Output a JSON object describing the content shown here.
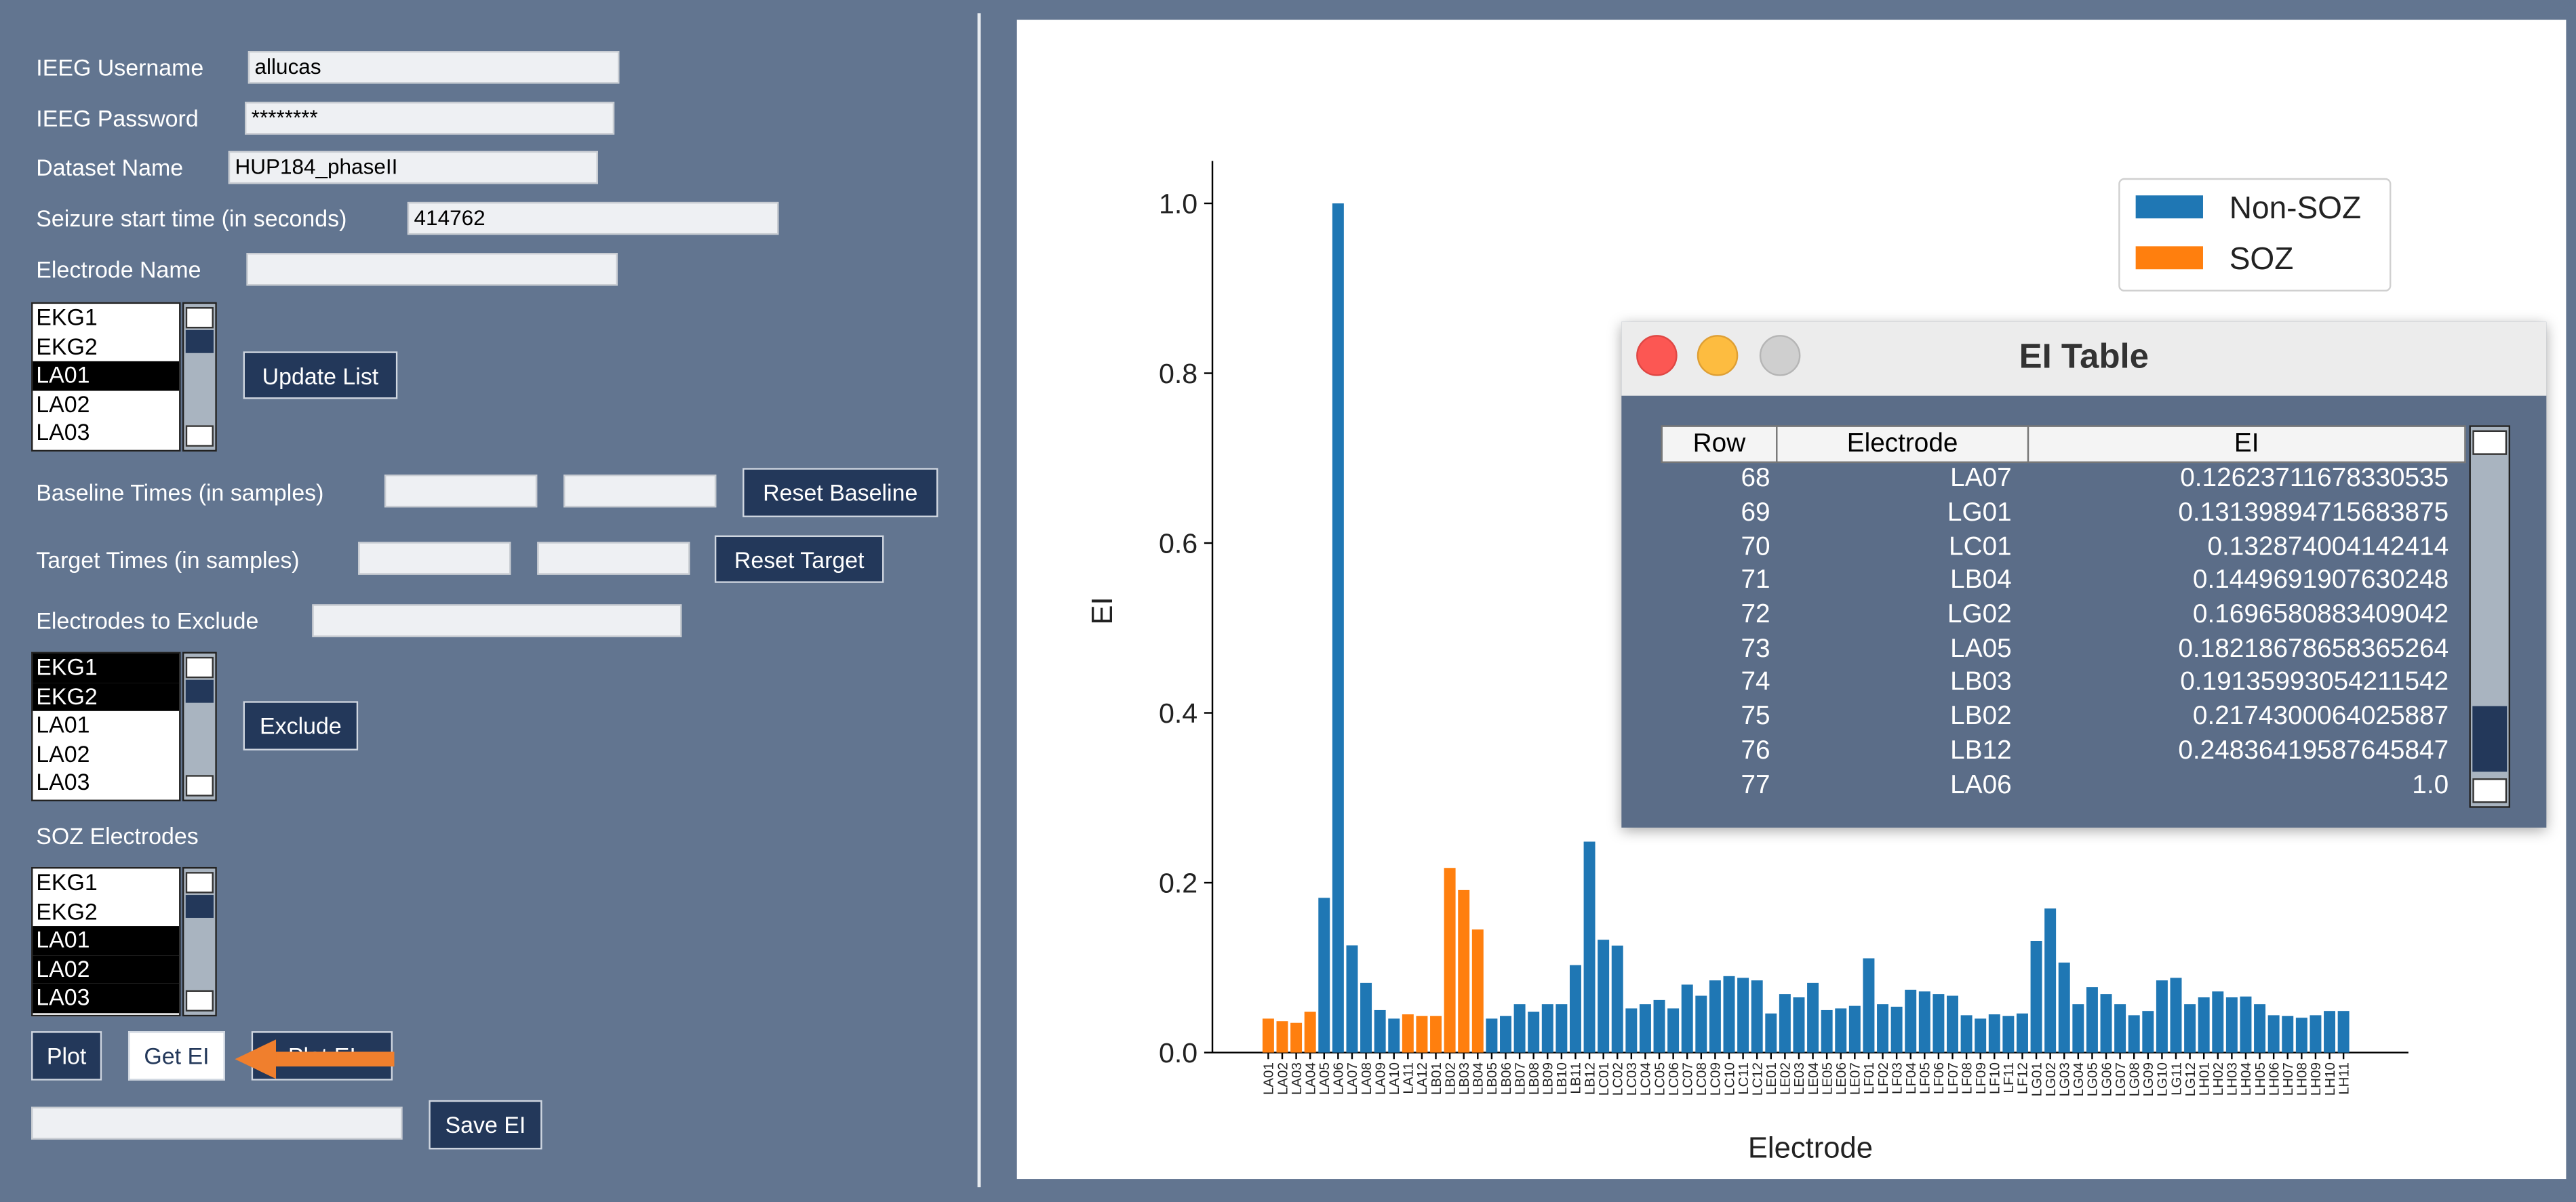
{
  "login": [
    {
      "label": "IEEG Username",
      "value": "allucas"
    },
    {
      "label": "IEEG Password",
      "value": "********"
    },
    {
      "label": "Dataset Name",
      "value": "HUP184_phaseII"
    },
    {
      "label": "Seizure start time (in seconds)",
      "value": "414762"
    },
    {
      "label": "Electrode Name"
    }
  ],
  "electrode_list": {
    "items": [
      "EKG1",
      "EKG2",
      "LA01",
      "LA02",
      "LA03"
    ],
    "selected": [
      2
    ],
    "button": "Update List"
  },
  "baseline": {
    "label": "Baseline Times (in samples)",
    "button": "Reset Baseline"
  },
  "target": {
    "label": "Target Times (in samples)",
    "button": "Reset Target"
  },
  "exclude": {
    "label": "Electrodes to Exclude",
    "items": [
      "EKG1",
      "EKG2",
      "LA01",
      "LA02",
      "LA03"
    ],
    "selected": [
      0,
      1
    ],
    "button": "Exclude"
  },
  "soz": {
    "label": "SOZ Electrodes",
    "items": [
      "EKG1",
      "EKG2",
      "LA01",
      "LA02",
      "LA03"
    ],
    "selected": [
      2,
      3,
      4
    ]
  },
  "actions": [
    "Plot",
    "Get EI",
    "Plot EI"
  ],
  "save_button": "Save EI",
  "ei_window": {
    "title": "EI Table",
    "columns": [
      "Row",
      "Electrode",
      "EI"
    ],
    "rows": [
      [
        "68",
        "LA07",
        "0.12623711678330535"
      ],
      [
        "69",
        "LG01",
        "0.13139894715683875"
      ],
      [
        "70",
        "LC01",
        "0.132874004142414"
      ],
      [
        "71",
        "LB04",
        "0.1449691907630248"
      ],
      [
        "72",
        "LG02",
        "0.1696580883409042"
      ],
      [
        "73",
        "LA05",
        "0.18218678658365264"
      ],
      [
        "74",
        "LB03",
        "0.19135993054211542"
      ],
      [
        "75",
        "LB02",
        "0.2174300064025887"
      ],
      [
        "76",
        "LB12",
        "0.24836419587645847"
      ],
      [
        "77",
        "LA06",
        "1.0"
      ]
    ]
  },
  "chart_data": {
    "type": "bar",
    "xlabel": "Electrode",
    "ylabel": "EI",
    "categories": [
      "LA01",
      "LA02",
      "LA03",
      "LA04",
      "LA05",
      "LA06",
      "LA07",
      "LA08",
      "LA09",
      "LA10",
      "LA11",
      "LA12",
      "LB01",
      "LB02",
      "LB03",
      "LB04",
      "LB05",
      "LB06",
      "LB07",
      "LB08",
      "LB09",
      "LB10",
      "LB11",
      "LB12",
      "LC01",
      "LC02",
      "LC03",
      "LC04",
      "LC05",
      "LC06",
      "LC07",
      "LC08",
      "LC09",
      "LC10",
      "LC11",
      "LC12",
      "LE01",
      "LE02",
      "LE03",
      "LE04",
      "LE05",
      "LE06",
      "LE07",
      "LF01",
      "LF02",
      "LF03",
      "LF04",
      "LF05",
      "LF06",
      "LF07",
      "LF08",
      "LF09",
      "LF10",
      "LF11",
      "LF12",
      "LG01",
      "LG02",
      "LG03",
      "LG04",
      "LG05",
      "LG06",
      "LG07",
      "LG08",
      "LG09",
      "LG10",
      "LG11",
      "LG12",
      "LH01",
      "LH02",
      "LH03",
      "LH04",
      "LH05",
      "LH06",
      "LH07",
      "LH08",
      "LH09",
      "LH10",
      "LH11"
    ],
    "series": [
      {
        "name": "Non-SOZ",
        "color": "#1f77b4",
        "values": [
          null,
          null,
          null,
          null,
          0.18218678658365264,
          1.0,
          0.12623711678330535,
          0.082,
          0.05,
          0.04,
          null,
          null,
          null,
          null,
          null,
          null,
          0.04,
          0.043,
          0.057,
          0.048,
          0.057,
          0.057,
          0.103,
          0.24836419587645847,
          0.132874004142414,
          0.126,
          0.052,
          0.057,
          0.062,
          0.052,
          0.08,
          0.067,
          0.085,
          0.09,
          0.088,
          0.085,
          0.046,
          0.069,
          0.065,
          0.082,
          0.05,
          0.052,
          0.055,
          0.111,
          0.057,
          0.054,
          0.074,
          0.072,
          0.069,
          0.067,
          0.044,
          0.04,
          0.045,
          0.043,
          0.046,
          0.13139894715683875,
          0.1696580883409042,
          0.106,
          0.057,
          0.077,
          0.069,
          0.057,
          0.044,
          0.049,
          0.085,
          0.088,
          0.057,
          0.065,
          0.072,
          0.065,
          0.066,
          0.057,
          0.044,
          0.043,
          0.041,
          0.044,
          0.049,
          0.049
        ]
      },
      {
        "name": "SOZ",
        "color": "#ff7f0e",
        "values": [
          0.04,
          0.037,
          0.035,
          0.048,
          null,
          null,
          null,
          null,
          null,
          null,
          0.045,
          0.043,
          0.043,
          0.2174300064025887,
          0.19135993054211542,
          0.1449691907630248,
          null,
          null,
          null,
          null,
          null,
          null,
          null,
          null,
          null,
          null,
          null,
          null,
          null,
          null,
          null,
          null,
          null,
          null,
          null,
          null,
          null,
          null,
          null,
          null,
          null,
          null,
          null,
          null,
          null,
          null,
          null,
          null,
          null,
          null,
          null,
          null,
          null,
          null,
          null,
          null,
          null,
          null,
          null,
          null,
          null,
          null,
          null,
          null,
          null,
          null,
          null,
          null,
          null,
          null,
          null,
          null,
          null,
          null,
          null,
          null,
          null,
          null
        ]
      }
    ],
    "ylim": [
      0,
      1.05
    ],
    "yticks": [
      {
        "value": 0,
        "label": "0.0"
      },
      {
        "value": 0.2,
        "label": "0.2"
      },
      {
        "value": 0.4,
        "label": "0.4"
      },
      {
        "value": 0.6,
        "label": "0.6"
      },
      {
        "value": 0.8,
        "label": "0.8"
      },
      {
        "value": 1,
        "label": "1.0"
      }
    ],
    "legend": "upper right"
  }
}
